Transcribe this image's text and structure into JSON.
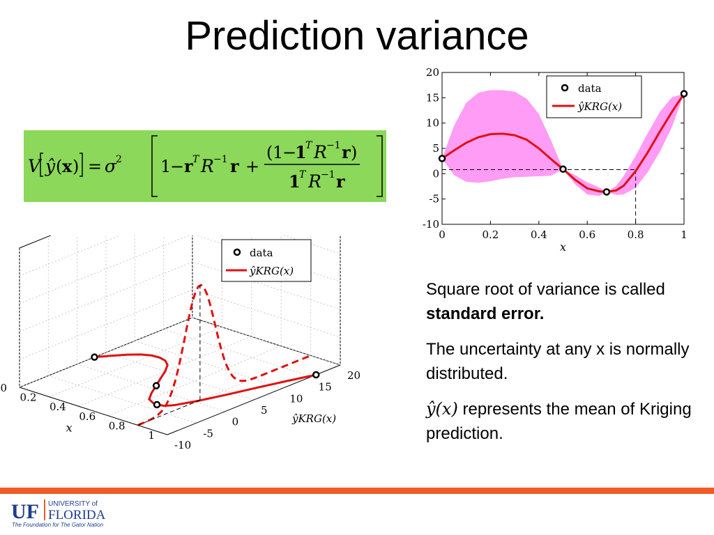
{
  "slide": {
    "title": "Prediction variance",
    "bullets": [
      {
        "prefix": "Square root of variance is called ",
        "bold": "standard error."
      },
      {
        "text": "The uncertainty at any x is normally distributed."
      },
      {
        "math": "ŷ(x)",
        "text": " represents the mean of Kriging prediction."
      }
    ]
  },
  "formula": {
    "V": "V",
    "yhat": "ŷ",
    "x": "x",
    "eq": "=",
    "sigma": "σ",
    "sq": "2",
    "one": "1",
    "minus": "−",
    "r": "r",
    "T": "T",
    "R": "R",
    "inv": "−1",
    "plus": "+"
  },
  "chart_data": [
    {
      "type": "line",
      "xlabel": "x",
      "ylabel": "",
      "xlim": [
        0,
        1
      ],
      "ylim": [
        -10,
        20
      ],
      "xticks": [
        "0",
        "0.2",
        "0.4",
        "0.6",
        "0.8",
        "1"
      ],
      "yticks": [
        "20",
        "15",
        "10",
        "5",
        "0",
        "-5",
        "-10"
      ],
      "legend": {
        "position": "top-center",
        "entries": [
          "data",
          "ŷKRG(x)"
        ]
      },
      "colors": {
        "mean": "#e01010",
        "band": "#ff9cf5",
        "data": "#000000"
      },
      "data_points": [
        {
          "x": 0.0,
          "y": 3.0
        },
        {
          "x": 0.5,
          "y": 0.9
        },
        {
          "x": 0.68,
          "y": -3.6
        },
        {
          "x": 1.0,
          "y": 15.8
        }
      ],
      "series": [
        {
          "name": "ŷKRG(x)",
          "x": [
            0,
            0.05,
            0.1,
            0.15,
            0.2,
            0.25,
            0.3,
            0.35,
            0.4,
            0.45,
            0.5,
            0.55,
            0.6,
            0.65,
            0.68,
            0.72,
            0.75,
            0.8,
            0.85,
            0.9,
            0.95,
            1.0
          ],
          "values": [
            3.0,
            4.6,
            6.1,
            7.2,
            7.8,
            7.9,
            7.6,
            6.7,
            5.0,
            2.9,
            0.9,
            -1.2,
            -2.9,
            -3.5,
            -3.6,
            -3.3,
            -2.4,
            0.5,
            4.2,
            8.3,
            12.2,
            15.8
          ],
          "band_upper": [
            3.0,
            9.5,
            14.0,
            16.0,
            16.5,
            16.5,
            16.2,
            14.8,
            11.8,
            6.6,
            0.9,
            -0.3,
            -1.7,
            -2.7,
            -3.6,
            -2.4,
            -0.5,
            3.5,
            8.0,
            12.2,
            15.1,
            15.8
          ],
          "band_lower": [
            3.0,
            -0.3,
            -1.6,
            -1.8,
            -1.5,
            -1.0,
            -0.7,
            -0.6,
            -0.5,
            -0.4,
            0.9,
            -2.1,
            -4.1,
            -4.4,
            -3.6,
            -4.2,
            -4.1,
            -2.8,
            0.3,
            4.3,
            9.2,
            15.8
          ]
        }
      ],
      "annotations": [
        {
          "x": 0.8,
          "y": 0.8,
          "style": "dashed guide lines"
        }
      ]
    },
    {
      "type": "line",
      "projection": "3d",
      "xlabel": "x",
      "ylabel": "ŷKRG(x)",
      "xticks": [
        "0",
        "0.2",
        "0.4",
        "0.6",
        "0.8",
        "1"
      ],
      "yticks": [
        "-10",
        "-5",
        "0",
        "5",
        "10",
        "15",
        "20"
      ],
      "legend": {
        "position": "top-center",
        "entries": [
          "data",
          "ŷKRG(x)"
        ]
      },
      "colors": {
        "mean": "#e01010",
        "density": "#e01010",
        "data": "#000000"
      },
      "data_points": [
        {
          "x": 0.0,
          "y": 3.0
        },
        {
          "x": 0.5,
          "y": 0.9
        },
        {
          "x": 0.68,
          "y": -3.6
        },
        {
          "x": 1.0,
          "y": 15.8
        }
      ],
      "density_slice": {
        "x": 0.8,
        "mean": 0.8,
        "style": "dashed normal pdf"
      }
    }
  ]
}
